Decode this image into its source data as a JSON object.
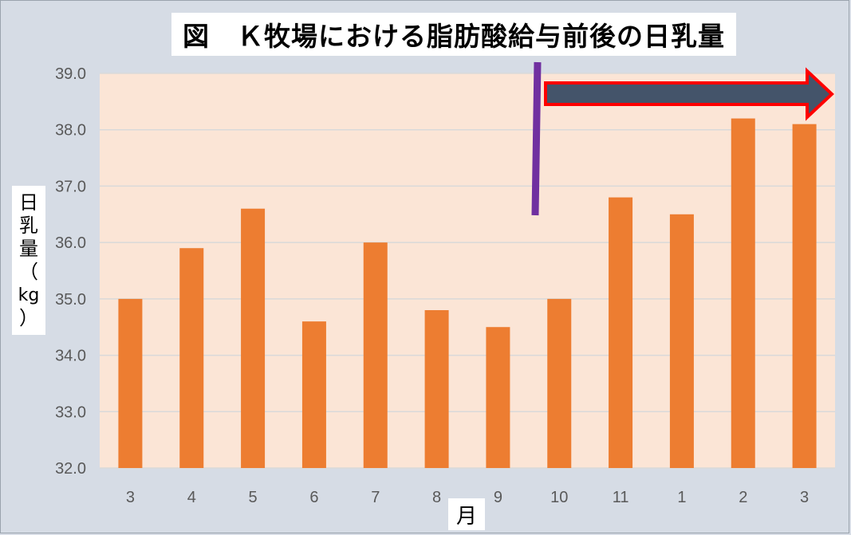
{
  "title": "図　Ｋ牧場における脂肪酸給与前後の日乳量",
  "y_axis_title_chars": [
    "日",
    "乳",
    "量",
    "（",
    "kg",
    "）"
  ],
  "x_axis_title": "月",
  "colors": {
    "background": "#d6dce5",
    "plot_area": "#fbe5d6",
    "bar": "#ed7d31",
    "gridline": "#d9d9d9",
    "divider_line": "#7030a0",
    "arrow_fill": "#44546a",
    "arrow_outline": "#ff0000"
  },
  "chart_data": {
    "type": "bar",
    "title": "図　Ｋ牧場における脂肪酸給与前後の日乳量",
    "xlabel": "月",
    "ylabel": "日乳量（kg）",
    "categories": [
      "3",
      "4",
      "5",
      "6",
      "7",
      "8",
      "9",
      "10",
      "11",
      "1",
      "2",
      "3"
    ],
    "values": [
      35.0,
      35.9,
      36.6,
      34.6,
      36.0,
      34.8,
      34.5,
      35.0,
      36.8,
      36.5,
      38.2,
      38.1
    ],
    "ylim": [
      32.0,
      39.0
    ],
    "yticks": [
      "32.0",
      "33.0",
      "34.0",
      "35.0",
      "36.0",
      "37.0",
      "38.0",
      "39.0"
    ],
    "grid": true,
    "legend": "none",
    "annotations": [
      {
        "type": "vertical-line",
        "position": "between categories 9 and 10",
        "color": "#7030a0"
      },
      {
        "type": "arrow",
        "direction": "right",
        "span": "10 to end",
        "color": "#44546a"
      }
    ]
  }
}
